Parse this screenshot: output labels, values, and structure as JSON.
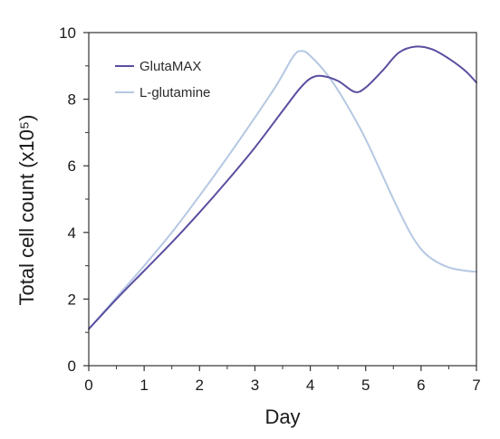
{
  "chart_data": {
    "type": "line",
    "title": "",
    "xlabel": "Day",
    "ylabel": "Total cell count (x10⁵)",
    "xlim": [
      0,
      7
    ],
    "ylim": [
      0,
      10
    ],
    "x_ticks": [
      "0",
      "1",
      "2",
      "3",
      "4",
      "5",
      "6",
      "7"
    ],
    "y_ticks": [
      "0",
      "2",
      "4",
      "6",
      "8",
      "10"
    ],
    "grid": false,
    "legend_position": "top-left",
    "series": [
      {
        "name": "GlutaMAX",
        "color": "#5a4fa0",
        "x": [
          0,
          0.5,
          1,
          1.5,
          2,
          2.5,
          3,
          3.5,
          3.8,
          4,
          4.2,
          4.5,
          4.8,
          5,
          5.3,
          5.6,
          5.9,
          6.2,
          6.5,
          6.8,
          7
        ],
        "y": [
          1.1,
          2.0,
          2.85,
          3.7,
          4.6,
          5.55,
          6.55,
          7.65,
          8.3,
          8.62,
          8.7,
          8.55,
          8.22,
          8.35,
          8.85,
          9.4,
          9.58,
          9.5,
          9.22,
          8.85,
          8.5
        ]
      },
      {
        "name": "L-glutamine",
        "color": "#b5c8e3",
        "x": [
          0,
          0.5,
          1,
          1.5,
          2,
          2.5,
          3,
          3.4,
          3.7,
          3.85,
          4,
          4.3,
          4.6,
          5,
          5.5,
          5.8,
          6,
          6.2,
          6.5,
          6.8,
          7
        ],
        "y": [
          1.1,
          2.05,
          3.0,
          4.0,
          5.1,
          6.25,
          7.45,
          8.45,
          9.3,
          9.45,
          9.3,
          8.75,
          8.0,
          6.8,
          5.0,
          4.0,
          3.5,
          3.2,
          2.95,
          2.85,
          2.82
        ]
      }
    ]
  }
}
